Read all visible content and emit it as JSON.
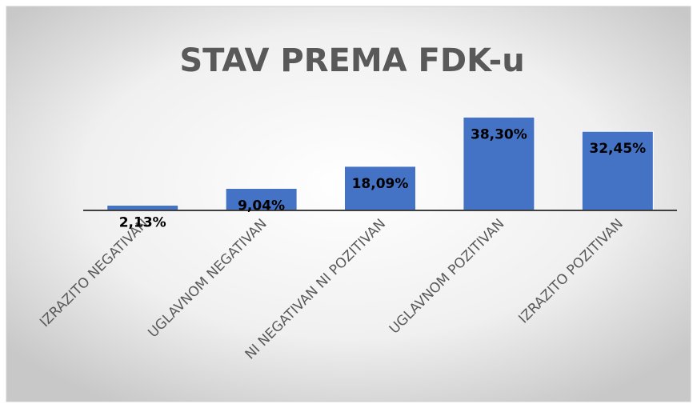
{
  "chart_data": {
    "type": "bar",
    "title": "STAV PREMA FDK-u",
    "categories": [
      "IZRAZITO NEGATIVAN",
      "UGLAVNOM NEGATIVAN",
      "NI NEGATIVAN NI POZITIVAN",
      "UGLAVNOM POZITIVAN",
      "IZRAZITO POZITIVAN"
    ],
    "values": [
      2.13,
      9.04,
      18.09,
      38.3,
      32.45
    ],
    "value_labels": [
      "2,13%",
      "9,04%",
      "18,09%",
      "38,30%",
      "32,45%"
    ],
    "color": "#4472c4",
    "ylim": [
      0,
      45
    ]
  }
}
